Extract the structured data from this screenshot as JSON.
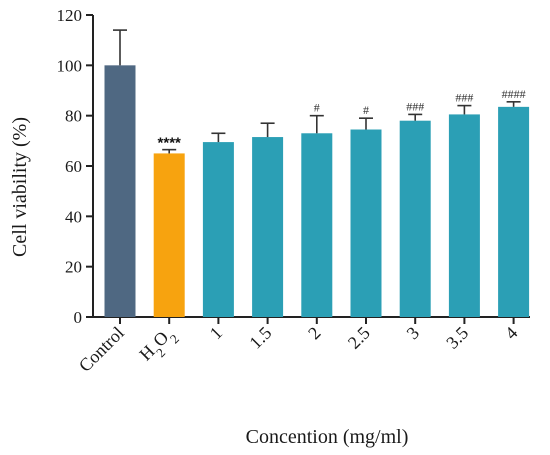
{
  "chart_data": {
    "type": "bar",
    "categories": [
      "Control",
      "H2O2",
      "1",
      "1.5",
      "2",
      "2.5",
      "3",
      "3.5",
      "4"
    ],
    "values": [
      100,
      65,
      69.5,
      71.5,
      73,
      74.5,
      78,
      80.5,
      83.5
    ],
    "error": [
      14,
      1.5,
      3.5,
      5.5,
      7,
      4.5,
      2.5,
      3.5,
      2
    ],
    "annotations": [
      "",
      "****",
      "",
      "",
      "#",
      "#",
      "###",
      "###",
      "####"
    ],
    "colors": [
      "#4f6882",
      "#f7a30f",
      "#2b9fb5",
      "#2b9fb5",
      "#2b9fb5",
      "#2b9fb5",
      "#2b9fb5",
      "#2b9fb5",
      "#2b9fb5"
    ],
    "xlabel": "Concention (mg/ml)",
    "ylabel": "Cell viability (%)",
    "ylim": [
      0,
      120
    ],
    "yticks": [
      0,
      20,
      40,
      60,
      80,
      100,
      120
    ],
    "grid": false
  }
}
